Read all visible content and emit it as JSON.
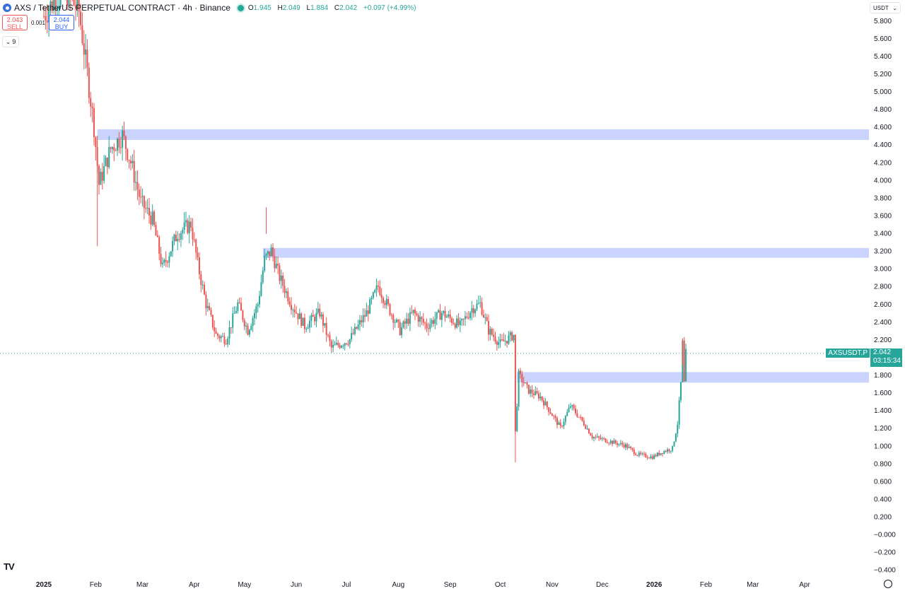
{
  "header": {
    "title": "AXS / TetherUS PERPETUAL CONTRACT · 4h · Binance",
    "ohlc": {
      "o_label": "O",
      "o": "1.945",
      "h_label": "H",
      "h": "2.049",
      "l_label": "L",
      "l": "1.884",
      "c_label": "C",
      "c": "2.042",
      "change": "+0.097 (+4.99%)"
    }
  },
  "trade": {
    "sell_price": "2.043",
    "sell_label": "SELL",
    "spread": "0.001",
    "buy_price": "2.044",
    "buy_label": "BUY"
  },
  "indicators_toggle": {
    "count": "9"
  },
  "currency": "USDT",
  "price_label": {
    "symbol": "AXSUSDT.P",
    "price": "2.042",
    "countdown": "03:15:34"
  },
  "colors": {
    "up": "#26a69a",
    "down": "#ef5350",
    "zone": "#c9d3fb"
  },
  "chart_data": {
    "type": "candlestick",
    "x_ticks": [
      "2025",
      "Feb",
      "Mar",
      "Apr",
      "May",
      "Jun",
      "Jul",
      "Aug",
      "Sep",
      "Oct",
      "Nov",
      "Dec",
      "2026",
      "Feb",
      "Mar",
      "Apr"
    ],
    "y_ticks": [
      "5.800",
      "5.600",
      "5.400",
      "5.200",
      "5.000",
      "4.800",
      "4.600",
      "4.400",
      "4.200",
      "4.000",
      "3.800",
      "3.600",
      "3.400",
      "3.200",
      "3.000",
      "2.800",
      "2.600",
      "2.400",
      "2.200",
      "1.800",
      "1.600",
      "1.400",
      "1.200",
      "1.000",
      "0.800",
      "0.600",
      "0.400",
      "0.200",
      "−0.000",
      "−0.200",
      "−0.400"
    ],
    "y_range": [
      -0.45,
      5.95
    ],
    "x_range": [
      "2025-01-01",
      "2026-04-30"
    ],
    "current_price": 2.042,
    "zones": [
      {
        "start": "2025-02-02",
        "low": 4.45,
        "high": 4.57
      },
      {
        "start": "2025-05-12",
        "low": 3.12,
        "high": 3.23
      },
      {
        "start": "2025-10-11",
        "low": 1.71,
        "high": 1.83
      }
    ],
    "path": [
      [
        "2025-01-01",
        5.85
      ],
      [
        "2025-01-08",
        6.05
      ],
      [
        "2025-01-15",
        6.1
      ],
      [
        "2025-01-22",
        5.9
      ],
      [
        "2025-01-27",
        5.2
      ],
      [
        "2025-01-31",
        4.6
      ],
      [
        "2025-02-03",
        3.95
      ],
      [
        "2025-02-10",
        4.35
      ],
      [
        "2025-02-17",
        4.5
      ],
      [
        "2025-02-22",
        4.2
      ],
      [
        "2025-02-28",
        3.75
      ],
      [
        "2025-03-07",
        3.55
      ],
      [
        "2025-03-13",
        3.0
      ],
      [
        "2025-03-22",
        3.4
      ],
      [
        "2025-03-30",
        3.5
      ],
      [
        "2025-04-03",
        3.05
      ],
      [
        "2025-04-08",
        2.6
      ],
      [
        "2025-04-14",
        2.25
      ],
      [
        "2025-04-20",
        2.2
      ],
      [
        "2025-04-27",
        2.6
      ],
      [
        "2025-05-03",
        2.3
      ],
      [
        "2025-05-09",
        2.6
      ],
      [
        "2025-05-13",
        3.1
      ],
      [
        "2025-05-17",
        3.2
      ],
      [
        "2025-05-22",
        2.9
      ],
      [
        "2025-05-29",
        2.6
      ],
      [
        "2025-06-06",
        2.35
      ],
      [
        "2025-06-15",
        2.5
      ],
      [
        "2025-06-22",
        2.1
      ],
      [
        "2025-07-03",
        2.2
      ],
      [
        "2025-07-13",
        2.5
      ],
      [
        "2025-07-20",
        2.8
      ],
      [
        "2025-07-25",
        2.6
      ],
      [
        "2025-08-02",
        2.3
      ],
      [
        "2025-08-10",
        2.5
      ],
      [
        "2025-08-18",
        2.35
      ],
      [
        "2025-08-27",
        2.5
      ],
      [
        "2025-09-07",
        2.35
      ],
      [
        "2025-09-14",
        2.55
      ],
      [
        "2025-09-19",
        2.6
      ],
      [
        "2025-09-24",
        2.3
      ],
      [
        "2025-10-01",
        2.15
      ],
      [
        "2025-10-09",
        2.25
      ],
      [
        "2025-10-10",
        1.15
      ],
      [
        "2025-10-12",
        1.8
      ],
      [
        "2025-10-18",
        1.62
      ],
      [
        "2025-10-25",
        1.55
      ],
      [
        "2025-11-01",
        1.35
      ],
      [
        "2025-11-06",
        1.2
      ],
      [
        "2025-11-12",
        1.45
      ],
      [
        "2025-11-20",
        1.25
      ],
      [
        "2025-11-25",
        1.1
      ],
      [
        "2025-12-05",
        1.05
      ],
      [
        "2025-12-15",
        1.0
      ],
      [
        "2025-12-22",
        0.9
      ],
      [
        "2025-12-31",
        0.87
      ],
      [
        "2026-01-06",
        0.93
      ],
      [
        "2026-01-12",
        0.97
      ],
      [
        "2026-01-15",
        1.25
      ],
      [
        "2026-01-17",
        1.7
      ],
      [
        "2026-01-18",
        2.15
      ],
      [
        "2026-01-19",
        1.7
      ],
      [
        "2026-01-20",
        2.04
      ]
    ],
    "wicks": [
      {
        "date": "2025-02-02",
        "low": 3.25
      },
      {
        "date": "2025-10-10",
        "low": 0.81
      },
      {
        "date": "2026-01-18",
        "high": 2.21
      },
      {
        "date": "2025-05-14",
        "high": 3.69
      }
    ]
  }
}
